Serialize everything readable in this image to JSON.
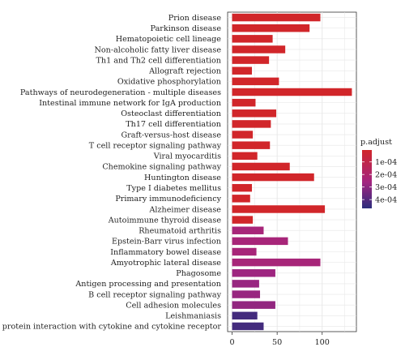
{
  "chart_data": {
    "type": "bar",
    "orientation": "horizontal",
    "categories": [
      "Prion disease",
      "Parkinson disease",
      "Hematopoietic cell lineage",
      "Non-alcoholic fatty liver disease",
      "Th1 and Th2 cell differentiation",
      "Allograft rejection",
      "Oxidative phosphorylation",
      "Pathways of neurodegeneration - multiple diseases",
      "Intestinal immune network for IgA production",
      "Osteoclast differentiation",
      "Th17 cell differentiation",
      "Graft-versus-host disease",
      "T cell receptor signaling pathway",
      "Viral myocarditis",
      "Chemokine signaling pathway",
      "Huntington disease",
      "Type I diabetes mellitus",
      "Primary immunodeficiency",
      "Alzheimer disease",
      "Autoimmune thyroid disease",
      "Rheumatoid arthritis",
      "Epstein-Barr virus infection",
      "Inflammatory bowel disease",
      "Amyotrophic lateral disease",
      "Phagosome",
      "Antigen processing and presentation",
      "B cell receptor signaling pathway",
      "Cell adhesion molecules",
      "Leishmaniasis",
      "Viral protein interaction with cytokine and cytokine receptor"
    ],
    "values": [
      98,
      86,
      45,
      59,
      41,
      22,
      52,
      133,
      26,
      49,
      43,
      23,
      42,
      28,
      64,
      91,
      22,
      20,
      103,
      23,
      35,
      62,
      27,
      98,
      48,
      30,
      31,
      48,
      28,
      35
    ],
    "p_adjust": [
      5e-06,
      5e-06,
      5e-06,
      5e-06,
      5e-06,
      5e-06,
      5e-06,
      5e-06,
      5e-06,
      5e-06,
      5e-06,
      5e-06,
      5e-06,
      5e-06,
      5e-06,
      5e-06,
      5e-06,
      5e-06,
      5e-06,
      5e-06,
      0.00024,
      0.00024,
      0.00024,
      0.00024,
      0.00027,
      0.00028,
      0.00028,
      0.00029,
      0.00043,
      0.00043
    ],
    "xticks": [
      0,
      50,
      100
    ],
    "xlim": [
      -5,
      138
    ],
    "legend": {
      "title": "p.adjust",
      "ticks": [
        "1e-04",
        "2e-04",
        "3e-04",
        "4e-04"
      ],
      "tick_values": [
        0.0001,
        0.0002,
        0.0003,
        0.0004
      ],
      "range": [
        5e-06,
        0.00047
      ],
      "color_low": "#d1262a",
      "color_mid": "#a32580",
      "color_high": "#2c2d7c",
      "placement": "right"
    },
    "grid": true,
    "panel_background": "#ffffff",
    "grid_color": "#e6e6e6"
  }
}
